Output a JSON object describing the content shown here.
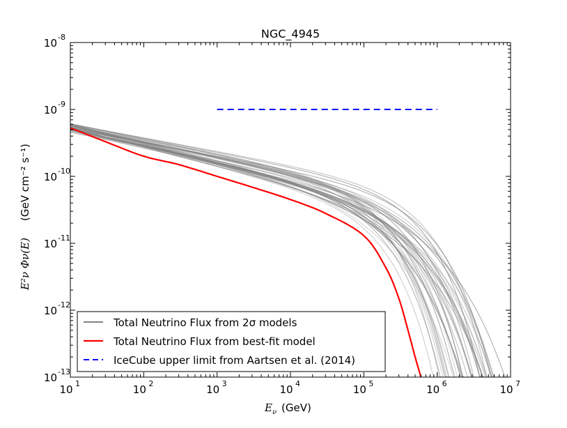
{
  "chart_data": {
    "type": "line",
    "title": "NGC_4945",
    "xlabel": "(GeV)",
    "xlabel_symbol": "E",
    "xlabel_sub": "ν",
    "ylabel": "(GeV cm⁻² s⁻¹)",
    "ylabel_symbol": "E²ν Φν(E)",
    "xscale": "log",
    "yscale": "log",
    "xlim": [
      10,
      10000000
    ],
    "ylim": [
      1e-13,
      1e-08
    ],
    "xticks": [
      {
        "base": "10",
        "exp": "1"
      },
      {
        "base": "10",
        "exp": "2"
      },
      {
        "base": "10",
        "exp": "3"
      },
      {
        "base": "10",
        "exp": "4"
      },
      {
        "base": "10",
        "exp": "5"
      },
      {
        "base": "10",
        "exp": "6"
      },
      {
        "base": "10",
        "exp": "7"
      }
    ],
    "yticks": [
      {
        "base": "10",
        "exp": "-13"
      },
      {
        "base": "10",
        "exp": "-12"
      },
      {
        "base": "10",
        "exp": "-11"
      },
      {
        "base": "10",
        "exp": "-10"
      },
      {
        "base": "10",
        "exp": "-9"
      },
      {
        "base": "10",
        "exp": "-8"
      }
    ],
    "legend_position": "lower-left",
    "series": [
      {
        "name": "Total Neutrino Flux from 2σ models",
        "color": "#808080",
        "style": "solid",
        "family": {
          "count": 40,
          "y_at_10GeV": [
            4.6e-10,
            6.2e-10
          ],
          "slope": [
            -0.3,
            -0.2
          ],
          "cutoff_GeV": [
            110000.0,
            500000.0
          ],
          "exponent": [
            0.55,
            0.85
          ]
        }
      },
      {
        "name": "Total Neutrino Flux from best-fit model",
        "color": "#ff0000",
        "style": "solid",
        "x": [
          10,
          30,
          100,
          300,
          1000,
          3000,
          10000,
          30000,
          100000,
          200000,
          300000,
          400000,
          500000,
          600000
        ],
        "y": [
          5.3e-10,
          3.3e-10,
          2e-10,
          1.5e-10,
          1e-10,
          6.9e-11,
          4.5e-11,
          2.8e-11,
          1.3e-11,
          4.3e-12,
          1.5e-12,
          5e-13,
          2e-13,
          1e-13
        ]
      },
      {
        "name": "IceCube upper limit from Aartsen et al. (2014)",
        "color": "#0000ff",
        "style": "dashed",
        "x": [
          1000,
          1000000
        ],
        "y": [
          1e-09,
          1e-09
        ]
      }
    ]
  }
}
